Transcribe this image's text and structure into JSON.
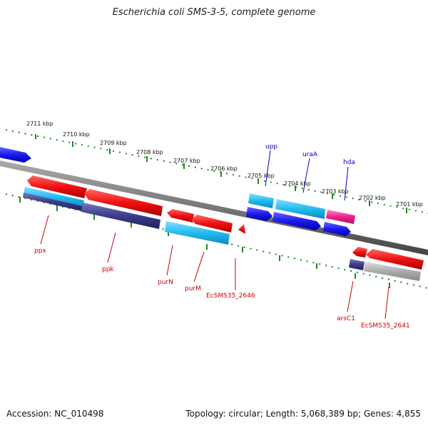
{
  "header": {
    "title": "Escherichia coli SMS-3-5, complete genome"
  },
  "footer": {
    "accession": "Accession: NC_010498",
    "summary": "Topology: circular; Length: 5,068,389 bp; Genes: 4,855"
  },
  "scale_labels": [
    "2711 kbp",
    "2710 kbp",
    "2709 kbp",
    "2708 kbp",
    "2707 kbp",
    "2706 kbp",
    "2705 kbp",
    "2704 kbp",
    "2703 kbp",
    "2702 kbp",
    "2701 kbp"
  ],
  "genes": {
    "ppx": "ppx",
    "ppk": "ppk",
    "purN": "purN",
    "purM": "purM",
    "ecsms35_2646": "EcSMS35_2646",
    "arsC1": "arsC1",
    "ecsms35_2641": "EcSMS35_2641",
    "upp": "upp",
    "uraA": "uraA",
    "hda": "hda"
  },
  "colors": {
    "forward_gene": "#ee1111",
    "cds_light": "#22bbee",
    "cds_dark": "#3b3b8a",
    "cds_blue": "#1a1aee",
    "cds_magenta": "#ee2288",
    "cds_gray": "#aaaaaa",
    "backbone": "#777777",
    "tick": "#228822"
  }
}
